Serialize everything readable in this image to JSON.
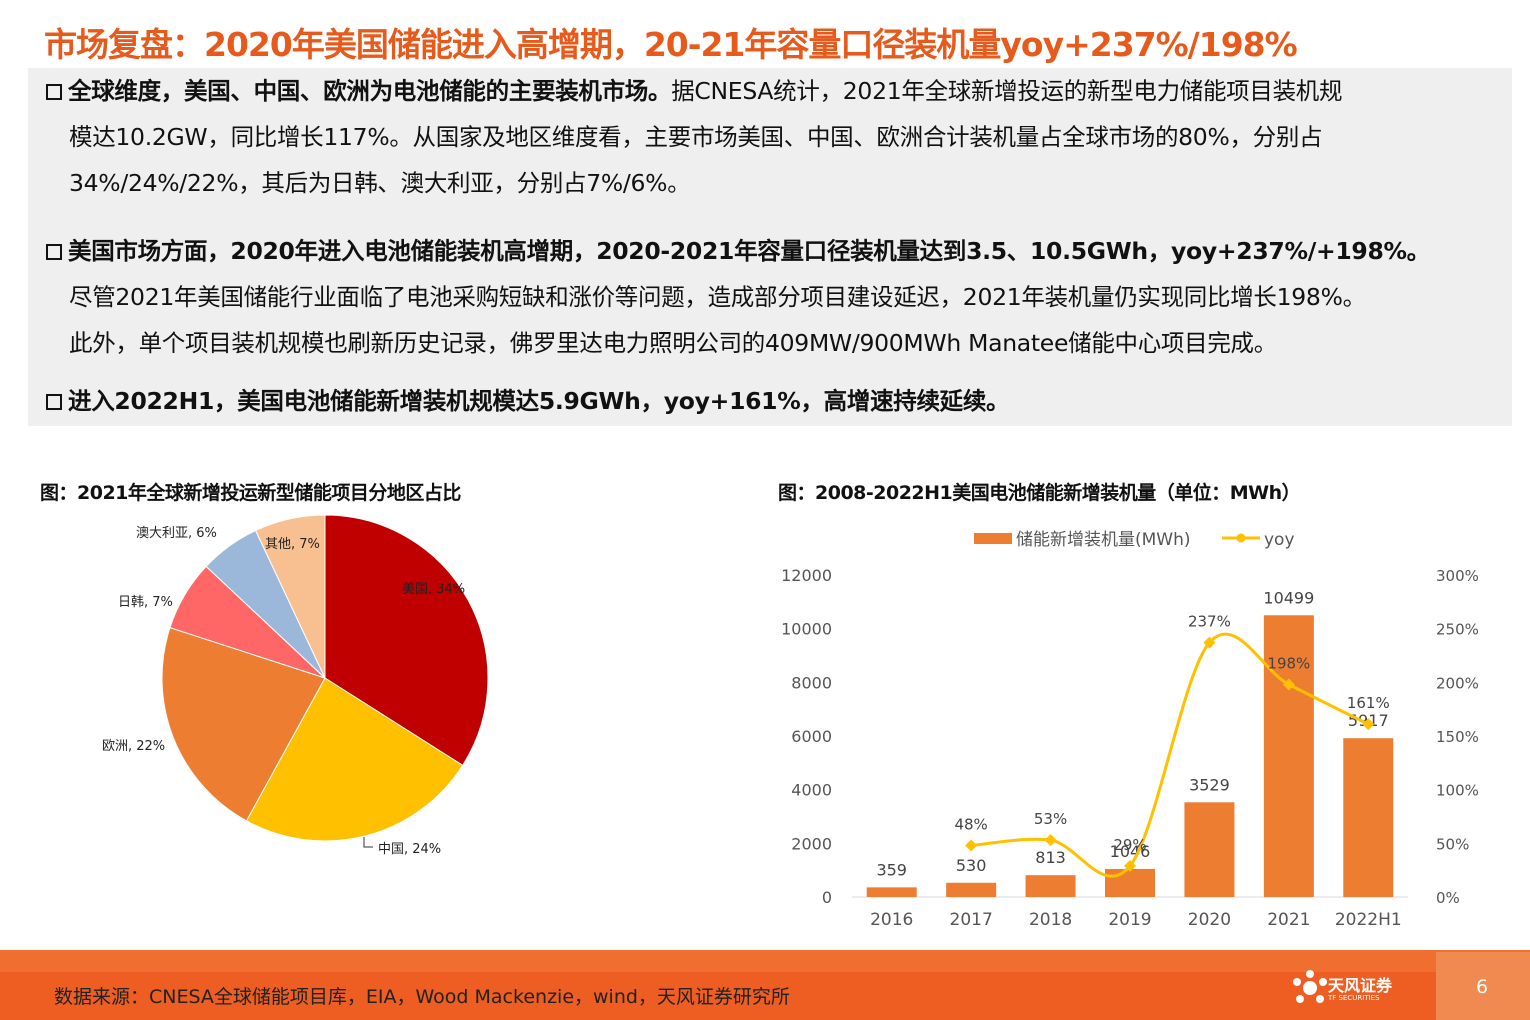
{
  "title": "市场复盘：2020年美国储能进入高增期，20-21年容量口径装机量yoy+237%/198%",
  "bullets": [
    {
      "lead": "全球维度，美国、中国、欧洲为电池储能的主要装机市场。",
      "lines": [
        "据CNESA统计，2021年全球新增投运的新型电力储能项目装机规",
        "模达10.2GW，同比增长117%。从国家及地区维度看，主要市场美国、中国、欧洲合计装机量占全球市场的80%，分别占",
        "34%/24%/22%，其后为日韩、澳大利亚，分别占7%/6%。"
      ]
    },
    {
      "lead": "美国市场方面，2020年进入电池储能装机高增期，2020-2021年容量口径装机量达到3.5、10.5GWh，yoy+237%/+198%。",
      "lines": [
        "尽管2021年美国储能行业面临了电池采购短缺和涨价等问题，造成部分项目建设延迟，2021年装机量仍实现同比增长198%。",
        "此外，单个项目装机规模也刷新历史记录，佛罗里达电力照明公司的409MW/900MWh Manatee储能中心项目完成。"
      ]
    },
    {
      "lead": "进入2022H1，美国电池储能新增装机规模达5.9GWh，yoy+161%，高增速持续延续。",
      "lines": []
    }
  ],
  "pie_title": "图：2021年全球新增投运新型储能项目分地区占比",
  "bar_title": "图：2008-2022H1美国电池储能新增装机量（单位：MWh）",
  "footer": {
    "source": "数据来源：CNESA全球储能项目库，EIA，Wood Mackenzie，wind，天风证券研究所",
    "logo_text": "天风证券",
    "logo_sub": "TF SECURITIES",
    "page": "6"
  },
  "chart_data": [
    {
      "type": "pie",
      "slices": [
        {
          "label": "美国, 34%",
          "name": "美国",
          "value": 34,
          "color": "#c00000"
        },
        {
          "label": "中国, 24%",
          "name": "中国",
          "value": 24,
          "color": "#ffc000"
        },
        {
          "label": "欧洲, 22%",
          "name": "欧洲",
          "value": 22,
          "color": "#ed7d31"
        },
        {
          "label": "日韩, 7%",
          "name": "日韩",
          "value": 7,
          "color": "#ff6666"
        },
        {
          "label": "澳大利亚, 6%",
          "name": "澳大利亚",
          "value": 6,
          "color": "#9bb7d9"
        },
        {
          "label": "其他, 7%",
          "name": "其他",
          "value": 7,
          "color": "#f8c090"
        }
      ]
    },
    {
      "type": "bar",
      "categories": [
        "2016",
        "2017",
        "2018",
        "2019",
        "2020",
        "2021",
        "2022H1"
      ],
      "series": [
        {
          "name": "储能新增装机量(MWh)",
          "type": "bar",
          "axis": "left",
          "color": "#ed7d31",
          "values": [
            359,
            530,
            813,
            1046,
            3529,
            10499,
            5917
          ],
          "labels": [
            "359",
            "530",
            "813",
            "1046",
            "3529",
            "10499",
            "5917"
          ]
        },
        {
          "name": "yoy",
          "type": "line",
          "axis": "right",
          "color": "#ffc000",
          "values": [
            null,
            48,
            53,
            29,
            237,
            198,
            161
          ],
          "labels": [
            "",
            "48%",
            "53%",
            "29%",
            "237%",
            "198%",
            "161%"
          ]
        }
      ],
      "y_left": {
        "min": 0,
        "max": 12000,
        "ticks": [
          "0",
          "2000",
          "4000",
          "6000",
          "8000",
          "10000",
          "12000"
        ]
      },
      "y_right": {
        "min": 0,
        "max": 300,
        "ticks": [
          "0%",
          "50%",
          "100%",
          "150%",
          "200%",
          "250%",
          "300%"
        ]
      },
      "legend_position": "top"
    }
  ]
}
